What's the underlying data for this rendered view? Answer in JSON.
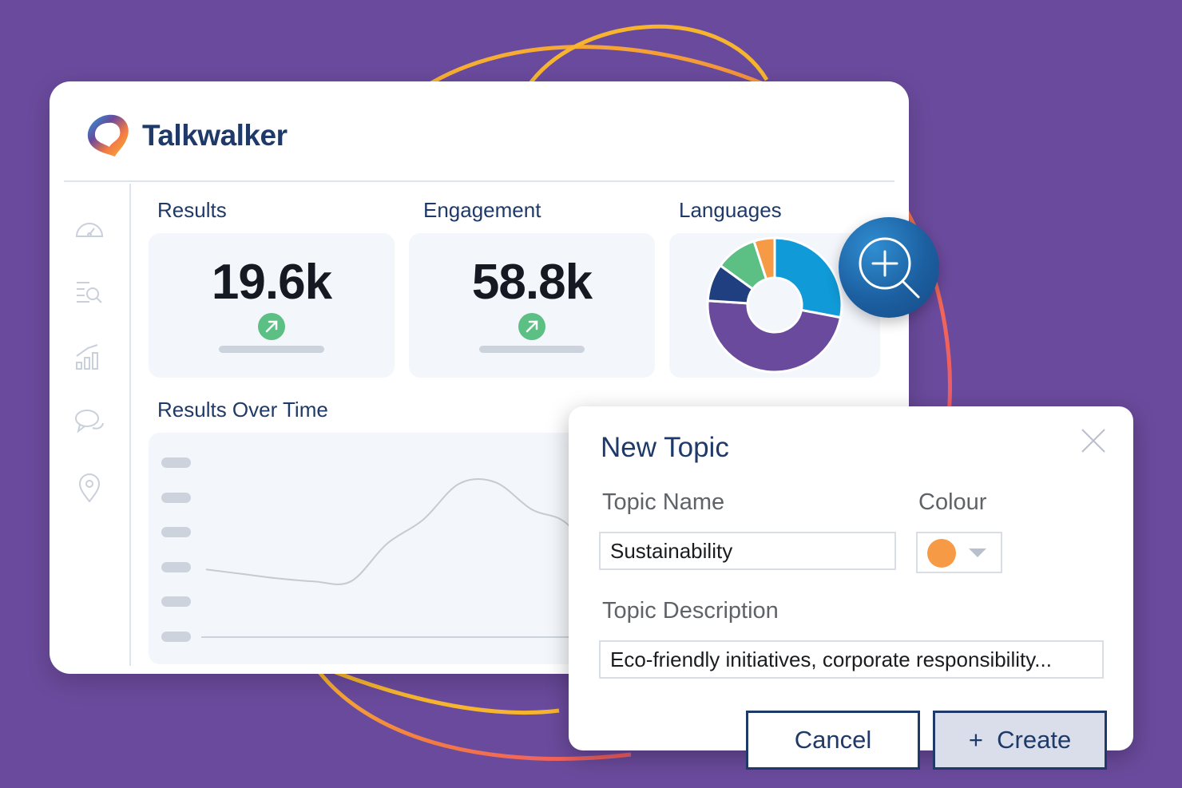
{
  "app": {
    "brand_name": "Talkwalker"
  },
  "nav": [
    {
      "icon": "speedometer-icon"
    },
    {
      "icon": "search-list-icon"
    },
    {
      "icon": "bar-chart-icon"
    },
    {
      "icon": "chat-bubbles-icon"
    },
    {
      "icon": "location-pin-icon"
    }
  ],
  "dashboard": {
    "results_label": "Results",
    "results_value": "19.6k",
    "engagement_label": "Engagement",
    "engagement_value": "58.8k",
    "languages_label": "Languages",
    "over_time_label": "Results Over Time"
  },
  "chart_data": [
    {
      "type": "pie",
      "title": "Languages",
      "slices": [
        {
          "value": 28,
          "color": "#109ad7"
        },
        {
          "value": 48,
          "color": "#6a4a9c"
        },
        {
          "value": 9,
          "color": "#1f3f80"
        },
        {
          "value": 10,
          "color": "#5cbf83"
        },
        {
          "value": 5,
          "color": "#f79a46"
        }
      ]
    },
    {
      "type": "line",
      "title": "Results Over Time",
      "y": [
        4.5,
        4.2,
        3.9,
        3.7,
        3.7,
        6.2,
        7.8,
        10.2,
        10.3,
        8.5,
        7.5,
        4.0
      ]
    }
  ],
  "modal": {
    "title": "New Topic",
    "topic_name_label": "Topic Name",
    "topic_name_value": "Sustainability",
    "colour_label": "Colour",
    "colour_value": "#f79a46",
    "topic_description_label": "Topic Description",
    "topic_description_value": "Eco-friendly initiatives, corporate responsibility...",
    "cancel_label": "Cancel",
    "create_label": "+  Create"
  },
  "colors": {
    "background": "#6a4a9c",
    "primary": "#1f3a68",
    "accent_blue": "#1c5fa0",
    "trend_green": "#5cbf83",
    "orbit_orange": "#f5a33a",
    "orbit_pink": "#f0605d"
  }
}
